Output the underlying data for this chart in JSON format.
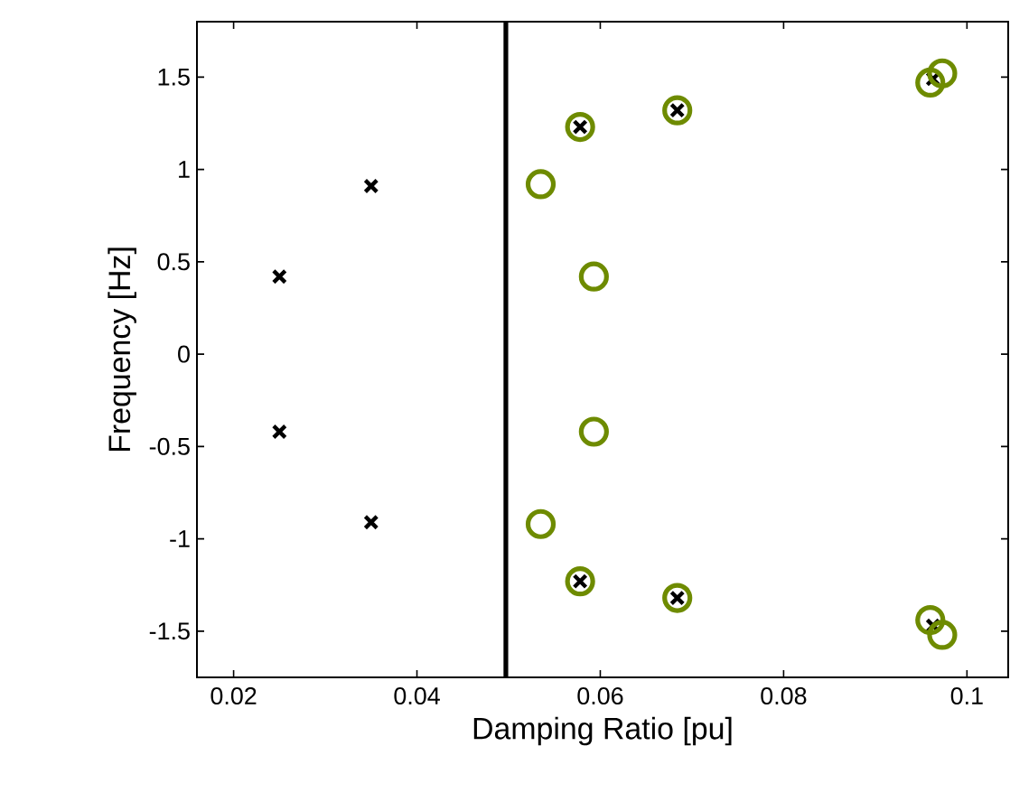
{
  "chart_data": {
    "type": "scatter",
    "xlabel": "Damping Ratio [pu]",
    "ylabel": "Frequency [Hz]",
    "xlim": [
      0.016,
      0.1045
    ],
    "ylim": [
      -1.75,
      1.8
    ],
    "xticks": [
      0.02,
      0.04,
      0.06,
      0.08,
      0.1
    ],
    "yticks": [
      -1.5,
      -1,
      -0.5,
      0,
      0.5,
      1,
      1.5
    ],
    "grid": false,
    "series": [
      {
        "marker": "cross",
        "color": "#000000",
        "x": [
          0.025,
          0.035,
          0.0578,
          0.0684,
          0.0963,
          0.025,
          0.035,
          0.0578,
          0.0684,
          0.0963
        ],
        "values": [
          0.42,
          0.91,
          1.23,
          1.32,
          1.49,
          -0.42,
          -0.91,
          -1.23,
          -1.32,
          -1.47
        ]
      },
      {
        "marker": "circle",
        "color": "#6e8b00",
        "x": [
          0.0535,
          0.0593,
          0.0578,
          0.0684,
          0.096,
          0.0973,
          0.0535,
          0.0593,
          0.0578,
          0.0684,
          0.096,
          0.0973
        ],
        "values": [
          0.92,
          0.42,
          1.23,
          1.32,
          1.47,
          1.52,
          -0.92,
          -0.42,
          -1.23,
          -1.32,
          -1.44,
          -1.52
        ]
      }
    ],
    "ref_lines": [
      {
        "axis": "x",
        "value": 0.0497,
        "color": "#000000",
        "line_style": "solid"
      }
    ]
  }
}
